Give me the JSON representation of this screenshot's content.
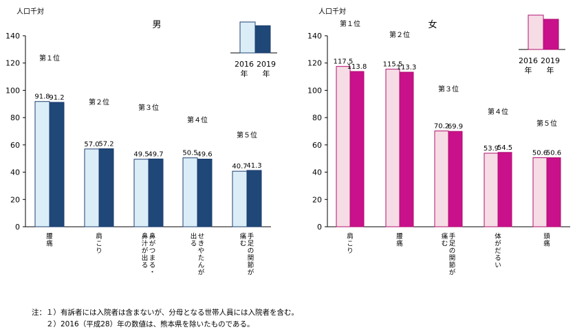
{
  "chart_data": [
    {
      "type": "bar",
      "title": "男",
      "ylabel": "人口千対",
      "ylim": [
        0,
        140
      ],
      "yticks": [
        0,
        20,
        40,
        60,
        80,
        100,
        120,
        140
      ],
      "grid": false,
      "legend_position": "top-right",
      "ranks": [
        "第１位",
        "第２位",
        "第３位",
        "第４位",
        "第５位"
      ],
      "categories": [
        "腰痛",
        "肩こり",
        "鼻がつまる・鼻汁が出る",
        "せきやたんが出る",
        "手足の関節が痛む"
      ],
      "series": [
        {
          "name": "2016年",
          "values": [
            91.8,
            57.0,
            49.5,
            50.5,
            40.7
          ],
          "color": "#dbeef8",
          "stroke": "#1f3f6e"
        },
        {
          "name": "2019年",
          "values": [
            91.2,
            57.2,
            49.7,
            49.6,
            41.3
          ],
          "color": "#1f4778",
          "stroke": "#1f3f6e"
        }
      ],
      "value_labels": [
        [
          "91.8",
          "57.0",
          "49.5",
          "50.5",
          "40.7"
        ],
        [
          "91.2",
          "57.2",
          "49.7",
          "49.6",
          "41.3"
        ]
      ]
    },
    {
      "type": "bar",
      "title": "女",
      "ylabel": "人口千対",
      "ylim": [
        0,
        140
      ],
      "yticks": [
        0,
        20,
        40,
        60,
        80,
        100,
        120,
        140
      ],
      "grid": false,
      "legend_position": "top-right",
      "ranks": [
        "第１位",
        "第２位",
        "第３位",
        "第４位",
        "第５位"
      ],
      "categories": [
        "肩こり",
        "腰痛",
        "手足の関節が痛む",
        "体がだるい",
        "頭痛"
      ],
      "series": [
        {
          "name": "2016年",
          "values": [
            117.5,
            115.5,
            70.2,
            53.9,
            50.6
          ],
          "color": "#f6dde5",
          "stroke": "#b0106f"
        },
        {
          "name": "2019年",
          "values": [
            113.8,
            113.3,
            69.9,
            54.5,
            50.6
          ],
          "color": "#c8118a",
          "stroke": "#b0106f"
        }
      ],
      "value_labels": [
        [
          "117.5",
          "115.5",
          "70.2",
          "53.9",
          "50.6"
        ],
        [
          "113.8",
          "113.3",
          "69.9",
          "54.5",
          "50.6"
        ]
      ]
    }
  ],
  "notes": [
    "注：１）有訴者には入院者は含まないが、分母となる世帯人員には入院者を含む。",
    "　　２）2016（平成28）年の数値は、熊本県を除いたものである。"
  ]
}
